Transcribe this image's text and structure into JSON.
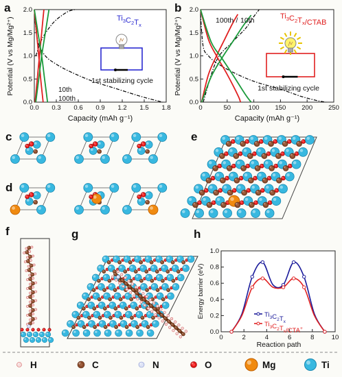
{
  "panel_labels": {
    "a": "a",
    "b": "b",
    "c": "c",
    "d": "d",
    "e": "e",
    "f": "f",
    "g": "g",
    "h": "h"
  },
  "chart_data": [
    {
      "panel": "a",
      "type": "line",
      "legend_text": "Ti3C2Tx",
      "xlabel": "Capacity (mAh g⁻¹)",
      "ylabel": "Potential (V vs Mg/Mg²⁺)",
      "xlim": [
        0,
        1.8
      ],
      "ylim": [
        0,
        2.0
      ],
      "x_ticks": [
        "0.0",
        "0.3",
        "0.6",
        "0.9",
        "1.2",
        "1.5",
        "1.8"
      ],
      "y_ticks": [
        "0.0",
        "0.5",
        "1.0",
        "1.5",
        "2.0"
      ],
      "annotations": [
        "1st stabilizing cycle",
        "10th",
        "100th",
        "100th"
      ],
      "series": [
        {
          "color": "#000000",
          "dash": true,
          "x": [
            0,
            0.05,
            0.15,
            0.3,
            0.5,
            0.8,
            1.1,
            1.4,
            1.6,
            1.75
          ],
          "y": [
            1.9,
            1.3,
            1.0,
            0.82,
            0.65,
            0.45,
            0.3,
            0.15,
            0.06,
            0.0
          ]
        },
        {
          "color": "#000000",
          "dash": true,
          "x": [
            0.02,
            0.1,
            0.2,
            0.3,
            0.45,
            0.55
          ],
          "y": [
            1.0,
            1.35,
            1.6,
            1.78,
            1.95,
            2.0
          ]
        },
        {
          "color": "#e02020",
          "x": [
            0,
            0.03,
            0.06,
            0.09,
            0.12
          ],
          "y": [
            2.0,
            1.5,
            1.0,
            0.45,
            0.0
          ]
        },
        {
          "color": "#e02020",
          "x": [
            0.01,
            0.04,
            0.07,
            0.1,
            0.13
          ],
          "y": [
            0.0,
            0.5,
            1.0,
            1.5,
            2.0
          ]
        },
        {
          "color": "#1a9a3a",
          "x": [
            0,
            0.05,
            0.1,
            0.14,
            0.18
          ],
          "y": [
            2.0,
            1.5,
            1.0,
            0.5,
            0.0
          ]
        },
        {
          "color": "#1a9a3a",
          "x": [
            0.02,
            0.06,
            0.1,
            0.15,
            0.2
          ],
          "y": [
            0.0,
            0.5,
            1.0,
            1.5,
            2.0
          ]
        }
      ]
    },
    {
      "panel": "b",
      "type": "line",
      "legend_text": "Ti3C2Tx/CTAB",
      "xlabel": "Capacity (mAh g⁻¹)",
      "ylabel": "Potential (V vs Mg/Mg²⁺)",
      "xlim": [
        0,
        250
      ],
      "ylim": [
        0,
        2.0
      ],
      "x_ticks": [
        "0",
        "50",
        "100",
        "150",
        "200",
        "250"
      ],
      "y_ticks": [
        "0.0",
        "0.5",
        "1.0",
        "1.5",
        "2.0"
      ],
      "annotations": [
        "100th",
        "10th",
        "1st stabilizing cycle"
      ],
      "series": [
        {
          "color": "#000000",
          "dash": true,
          "x": [
            0,
            5,
            15,
            30,
            60,
            100,
            150,
            190,
            220,
            235
          ],
          "y": [
            1.9,
            1.2,
            1.0,
            0.85,
            0.65,
            0.45,
            0.28,
            0.12,
            0.03,
            0.0
          ]
        },
        {
          "color": "#000000",
          "dash": true,
          "x": [
            5,
            30,
            60,
            85,
            100,
            110
          ],
          "y": [
            0.0,
            0.9,
            1.3,
            1.6,
            1.85,
            2.0
          ]
        },
        {
          "color": "#e02020",
          "x": [
            0,
            15,
            30,
            50,
            70,
            75
          ],
          "y": [
            2.0,
            1.35,
            1.0,
            0.6,
            0.15,
            0.0
          ]
        },
        {
          "color": "#e02020",
          "x": [
            2,
            15,
            30,
            45,
            60,
            70
          ],
          "y": [
            0.0,
            0.6,
            1.0,
            1.35,
            1.7,
            1.9
          ]
        },
        {
          "color": "#1a9a3a",
          "x": [
            0,
            20,
            40,
            60,
            85,
            95
          ],
          "y": [
            2.0,
            1.3,
            0.95,
            0.6,
            0.15,
            0.0
          ]
        },
        {
          "color": "#1a9a3a",
          "x": [
            2,
            20,
            40,
            60,
            80,
            95
          ],
          "y": [
            0.0,
            0.55,
            0.95,
            1.3,
            1.65,
            1.88
          ]
        }
      ]
    },
    {
      "panel": "h",
      "type": "line",
      "xlabel": "Reaction path",
      "ylabel": "Energy barrier (eV)",
      "xlim": [
        -1,
        10
      ],
      "ylim": [
        0,
        1.0
      ],
      "x_ticks": [
        "0",
        "2",
        "4",
        "6",
        "8",
        "10"
      ],
      "y_ticks": [
        "0.0",
        "0.2",
        "0.4",
        "0.6",
        "0.8",
        "1.0"
      ],
      "series": [
        {
          "name": "Ti3C2Tx",
          "color": "#1a1a9a",
          "x": [
            0,
            1,
            2,
            3,
            4,
            5,
            6,
            7,
            8,
            9
          ],
          "y": [
            0.0,
            0.22,
            0.68,
            0.86,
            0.58,
            0.58,
            0.86,
            0.68,
            0.22,
            0.0
          ]
        },
        {
          "name": "Ti3C2Tx/CTA+",
          "color": "#e02020",
          "x": [
            0,
            1,
            2,
            3,
            4,
            5,
            6,
            7,
            8,
            9
          ],
          "y": [
            0.0,
            0.2,
            0.55,
            0.66,
            0.55,
            0.55,
            0.66,
            0.55,
            0.2,
            0.0
          ]
        }
      ]
    }
  ],
  "atom_legend": [
    {
      "label": "H",
      "color": "#f7dada",
      "stroke": "#d06060"
    },
    {
      "label": "C",
      "color": "#8a4a2a",
      "stroke": "#5a2a10"
    },
    {
      "label": "N",
      "color": "#dde2f5",
      "stroke": "#8090d0"
    },
    {
      "label": "O",
      "color": "#e01818",
      "stroke": "#900000"
    },
    {
      "label": "Mg",
      "color": "#f08a10",
      "stroke": "#c06000"
    },
    {
      "label": "Ti",
      "color": "#38b8e0",
      "stroke": "#1a88b0"
    }
  ]
}
